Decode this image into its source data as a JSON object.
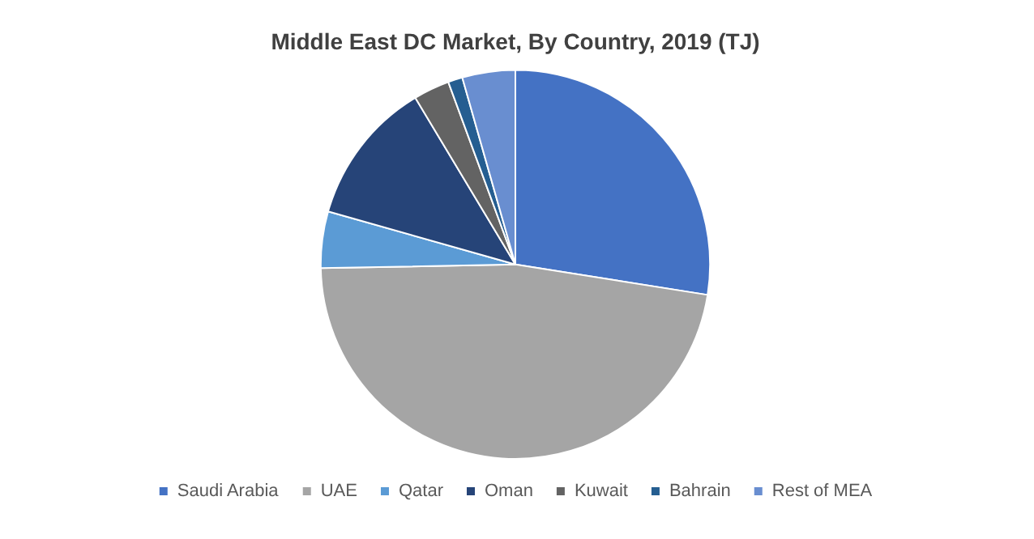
{
  "chart_data": {
    "type": "pie",
    "title": "Middle East DC Market, By Country, 2019 (TJ)",
    "categories": [
      "Saudi Arabia",
      "UAE",
      "Qatar",
      "Oman",
      "Kuwait",
      "Bahrain",
      "Rest of MEA"
    ],
    "values": [
      27.5,
      47.2,
      4.7,
      12,
      3,
      1.2,
      4.4
    ],
    "colors": [
      "#4472c4",
      "#a5a5a5",
      "#5b9bd5",
      "#264478",
      "#636363",
      "#255e91",
      "#698ed0"
    ],
    "legend": "bottom"
  }
}
